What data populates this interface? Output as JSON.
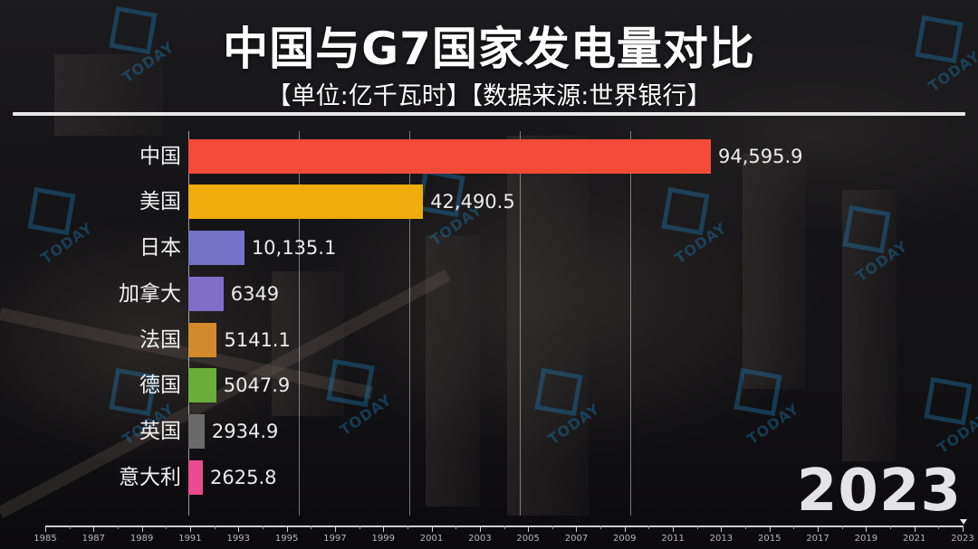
{
  "header": {
    "title": "中国与G7国家发电量对比",
    "subtitle": "【单位:亿千瓦时】【数据来源:世界银行】"
  },
  "current_year": "2023",
  "watermark": {
    "text": "TODAY",
    "icon": "today-logo-icon",
    "color": "#1f7fb8"
  },
  "chart_data": {
    "type": "bar",
    "orientation": "horizontal",
    "title": "中国与G7国家发电量对比",
    "subtitle": "【单位:亿千瓦时】【数据来源:世界银行】",
    "unit": "亿千瓦时",
    "source": "世界银行",
    "year": 2023,
    "categories": [
      "中国",
      "美国",
      "日本",
      "加拿大",
      "法国",
      "德国",
      "英国",
      "意大利"
    ],
    "values": [
      94595.9,
      42490.5,
      10135.1,
      6349,
      5141.1,
      5047.9,
      2934.9,
      2625.8
    ],
    "value_labels": [
      "94,595.9",
      "42,490.5",
      "10,135.1",
      "6349",
      "5141.1",
      "5047.9",
      "2934.9",
      "2625.8"
    ],
    "colors": [
      "#f44a38",
      "#f0ab0c",
      "#7273c9",
      "#7f6fc9",
      "#d28a2c",
      "#6aad38",
      "#6a6a6a",
      "#ea4a90"
    ],
    "xlim": [
      0,
      100000
    ],
    "gridlines": [
      20000,
      40000,
      60000,
      80000
    ],
    "grid": true,
    "legend": "none",
    "xlabel": "",
    "ylabel": ""
  },
  "bars": [
    {
      "label": "中国",
      "value": "94,595.9",
      "num": 94595.9,
      "color": "#f44a38"
    },
    {
      "label": "美国",
      "value": "42,490.5",
      "num": 42490.5,
      "color": "#f0ab0c"
    },
    {
      "label": "日本",
      "value": "10,135.1",
      "num": 10135.1,
      "color": "#7273c9"
    },
    {
      "label": "加拿大",
      "value": "6349",
      "num": 6349,
      "color": "#7f6fc9"
    },
    {
      "label": "法国",
      "value": "5141.1",
      "num": 5141.1,
      "color": "#d28a2c"
    },
    {
      "label": "德国",
      "value": "5047.9",
      "num": 5047.9,
      "color": "#6aad38"
    },
    {
      "label": "英国",
      "value": "2934.9",
      "num": 2934.9,
      "color": "#6a6a6a"
    },
    {
      "label": "意大利",
      "value": "2625.8",
      "num": 2625.8,
      "color": "#ea4a90"
    }
  ],
  "timeline": {
    "start": "1985",
    "end": "2023",
    "current": "2023",
    "labels": [
      "1985",
      "1987",
      "1989",
      "1991",
      "1993",
      "1995",
      "1997",
      "1999",
      "2001",
      "2003",
      "2005",
      "2007",
      "2009",
      "2011",
      "2013",
      "2015",
      "2017",
      "2019",
      "2021",
      "2023"
    ]
  }
}
